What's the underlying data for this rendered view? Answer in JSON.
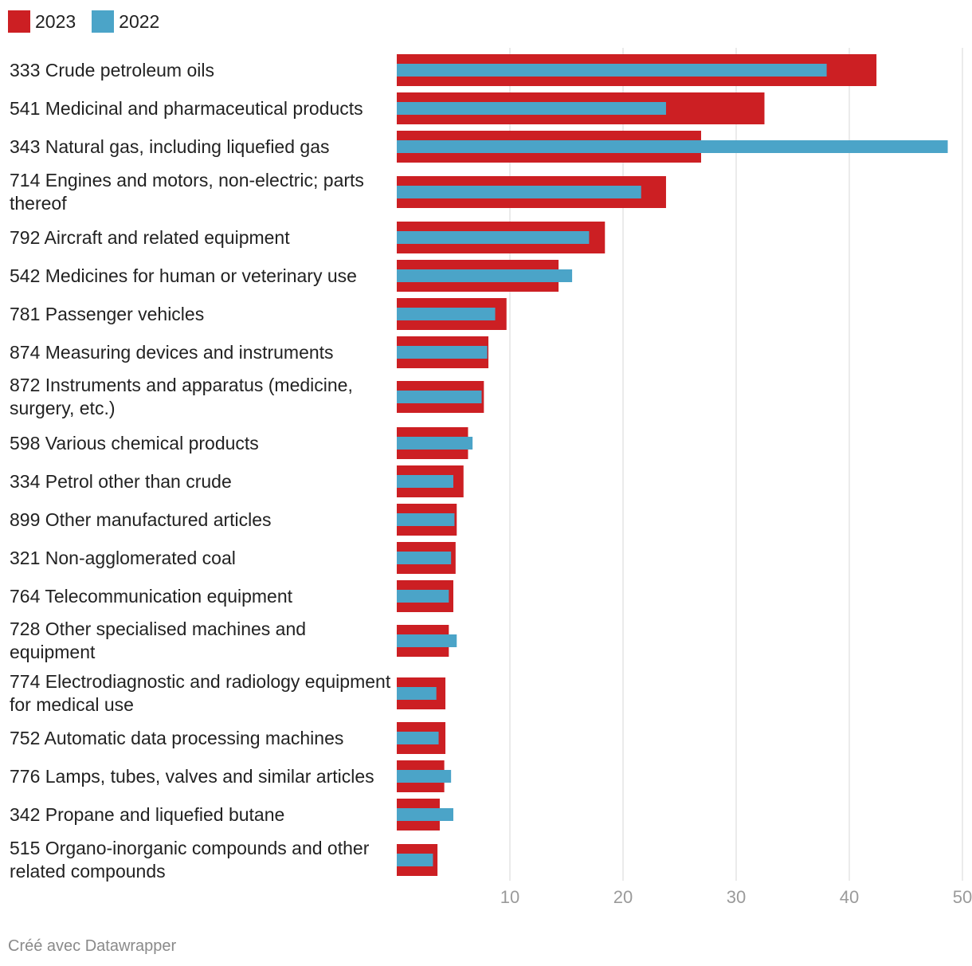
{
  "legend": [
    {
      "label": "2023",
      "color": "#cc1f23"
    },
    {
      "label": "2022",
      "color": "#4ba4c8"
    }
  ],
  "footer": "Créé avec Datawrapper",
  "chart_data": {
    "type": "bar",
    "orientation": "horizontal",
    "title": "",
    "xlabel": "",
    "ylabel": "",
    "xlim": [
      0,
      50
    ],
    "ticks": [
      10,
      20,
      30,
      40,
      50
    ],
    "tick_labels": [
      "10",
      "20",
      "30",
      "40",
      "50"
    ],
    "grid": true,
    "legend_position": "top-left",
    "categories": [
      "333 Crude petroleum oils",
      "541 Medicinal and pharmaceutical products",
      "343 Natural gas, including liquefied gas",
      "714 Engines and motors, non-electric; parts thereof",
      "792 Aircraft and related equipment",
      "542 Medicines for human or veterinary use",
      "781 Passenger vehicles",
      "874 Measuring devices and instruments",
      "872 Instruments and apparatus (medicine, surgery, etc.)",
      "598 Various chemical products",
      "334 Petrol other than crude",
      "899 Other manufactured articles",
      "321 Non-agglomerated coal",
      "764 Telecommunication equipment",
      "728 Other specialised machines and equipment",
      "774 Electrodiagnostic and radiology equipment for medical use",
      "752 Automatic data processing machines",
      "776 Lamps, tubes, valves and similar articles",
      "342 Propane and liquefied butane",
      "515 Organo-inorganic compounds and other related compounds"
    ],
    "series": [
      {
        "name": "2023",
        "color": "#cc1f23",
        "values": [
          42.4,
          32.5,
          26.9,
          23.8,
          18.4,
          14.3,
          9.7,
          8.1,
          7.7,
          6.3,
          5.9,
          5.3,
          5.2,
          5.0,
          4.6,
          4.3,
          4.3,
          4.2,
          3.8,
          3.6
        ]
      },
      {
        "name": "2022",
        "color": "#4ba4c8",
        "values": [
          38.0,
          23.8,
          48.7,
          21.6,
          17.0,
          15.5,
          8.7,
          8.0,
          7.5,
          6.7,
          5.0,
          5.1,
          4.8,
          4.6,
          5.3,
          3.5,
          3.7,
          4.8,
          5.0,
          3.2
        ]
      }
    ]
  }
}
